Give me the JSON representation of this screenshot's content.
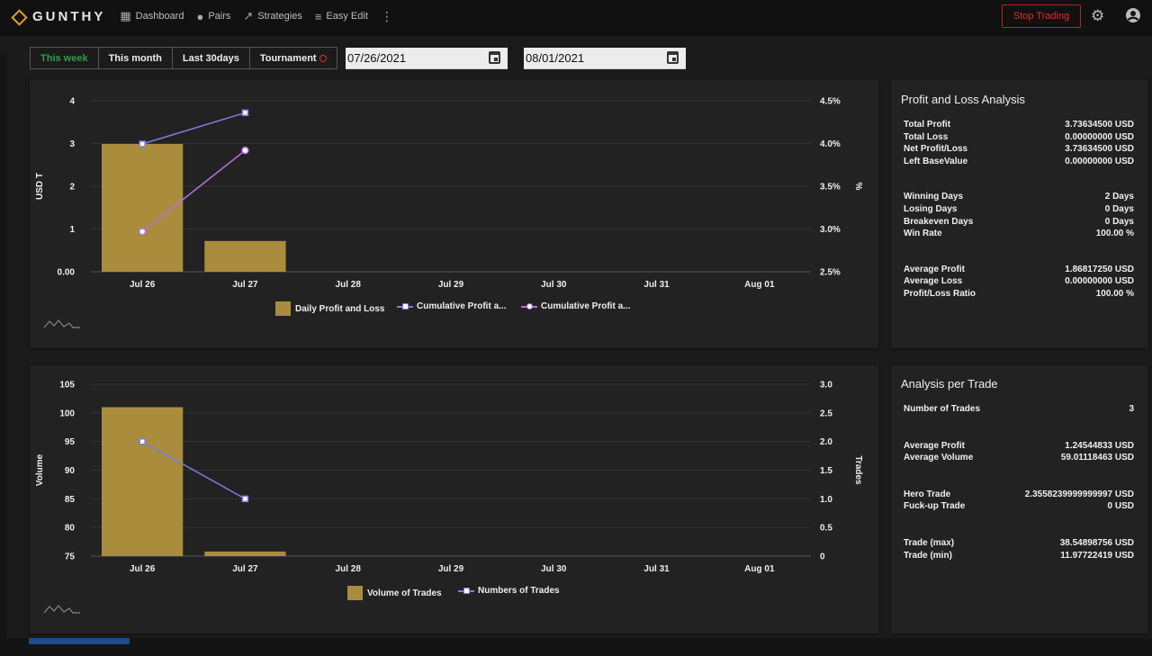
{
  "app": {
    "brand": "GUNTHY"
  },
  "nav": {
    "items": [
      {
        "label": "Dashboard",
        "icon": "dashboard-icon"
      },
      {
        "label": "Pairs",
        "icon": "pairs-icon"
      },
      {
        "label": "Strategies",
        "icon": "trending-icon"
      },
      {
        "label": "Easy Edit",
        "icon": "playlist-add-icon"
      }
    ],
    "stop_label": "Stop Trading"
  },
  "range": {
    "tabs": [
      "This week",
      "This month",
      "Last 30days",
      "Tournament"
    ],
    "active": "This week",
    "start_date": "07/26/2021",
    "end_date": "08/01/2021"
  },
  "pnl": {
    "title": "Profit and Loss Analysis",
    "groups": [
      [
        {
          "label": "Total Profit",
          "value": "3.73634500 USD"
        },
        {
          "label": "Total Loss",
          "value": "0.00000000 USD"
        },
        {
          "label": "Net Profit/Loss",
          "value": "3.73634500 USD"
        },
        {
          "label": "Left BaseValue",
          "value": "0.00000000 USD"
        }
      ],
      [
        {
          "label": "Winning Days",
          "value": "2 Days"
        },
        {
          "label": "Losing Days",
          "value": "0 Days"
        },
        {
          "label": "Breakeven Days",
          "value": "0 Days"
        },
        {
          "label": "Win Rate",
          "value": "100.00 %"
        }
      ],
      [
        {
          "label": "Average Profit",
          "value": "1.86817250 USD"
        },
        {
          "label": "Average Loss",
          "value": "0.00000000 USD"
        },
        {
          "label": "Profit/Loss Ratio",
          "value": "100.00 %"
        }
      ]
    ]
  },
  "trade": {
    "title": "Analysis per Trade",
    "groups": [
      [
        {
          "label": "Number of Trades",
          "value": "3"
        }
      ],
      [
        {
          "label": "Average Profit",
          "value": "1.24544833 USD"
        },
        {
          "label": "Average Volume",
          "value": "59.01118463 USD"
        }
      ],
      [
        {
          "label": "Hero Trade",
          "value": "2.3558239999999997 USD"
        },
        {
          "label": "Fuck-up Trade",
          "value": "0 USD"
        }
      ],
      [
        {
          "label": "Trade (max)",
          "value": "38.54898756 USD"
        },
        {
          "label": "Trade (min)",
          "value": "11.97722419 USD"
        }
      ]
    ]
  },
  "colors": {
    "bar": "#a98c3c",
    "line1": "#7b7de0",
    "line2": "#b56ee0",
    "stop": "#e0302a",
    "active_tab": "#2e9e4a"
  },
  "chart_data": [
    {
      "type": "bar",
      "categories": [
        "Jul 26",
        "Jul 27",
        "Jul 28",
        "Jul 29",
        "Jul 30",
        "Jul 31",
        "Aug 01"
      ],
      "ylabel": "USD T",
      "y2label": "%",
      "ylim": [
        0,
        4
      ],
      "yticks": [
        "0.00",
        "1",
        "2",
        "3",
        "4"
      ],
      "y2lim": [
        2.5,
        4.5
      ],
      "y2ticks": [
        "2.5%",
        "3.0%",
        "3.5%",
        "4.0%",
        "4.5%"
      ],
      "series": [
        {
          "name": "Daily Profit and Loss",
          "type": "bar",
          "axis": "left",
          "values": [
            2.99,
            0.72,
            null,
            null,
            null,
            null,
            null
          ]
        },
        {
          "name": "Cumulative Profit a...",
          "type": "line",
          "axis": "left",
          "marker": "square",
          "values": [
            2.99,
            3.72,
            null,
            null,
            null,
            null,
            null
          ]
        },
        {
          "name": "Cumulative Profit a...",
          "type": "line",
          "axis": "right",
          "marker": "circle",
          "values": [
            2.97,
            3.92,
            null,
            null,
            null,
            null,
            null
          ]
        }
      ]
    },
    {
      "type": "bar",
      "categories": [
        "Jul 26",
        "Jul 27",
        "Jul 28",
        "Jul 29",
        "Jul 30",
        "Jul 31",
        "Aug 01"
      ],
      "ylabel": "Volume",
      "y2label": "Trades",
      "ylim": [
        75,
        105
      ],
      "yticks": [
        "75",
        "80",
        "85",
        "90",
        "95",
        "100",
        "105"
      ],
      "y2lim": [
        0,
        3
      ],
      "y2ticks": [
        "0",
        "0.5",
        "1.0",
        "1.5",
        "2.0",
        "2.5",
        "3.0"
      ],
      "series": [
        {
          "name": "Volume of Trades",
          "type": "bar",
          "axis": "left",
          "values": [
            101,
            75.8,
            null,
            null,
            null,
            null,
            null
          ]
        },
        {
          "name": "Numbers of Trades",
          "type": "line",
          "axis": "right",
          "marker": "square",
          "values": [
            2,
            1,
            null,
            null,
            null,
            null,
            null
          ]
        }
      ]
    }
  ]
}
